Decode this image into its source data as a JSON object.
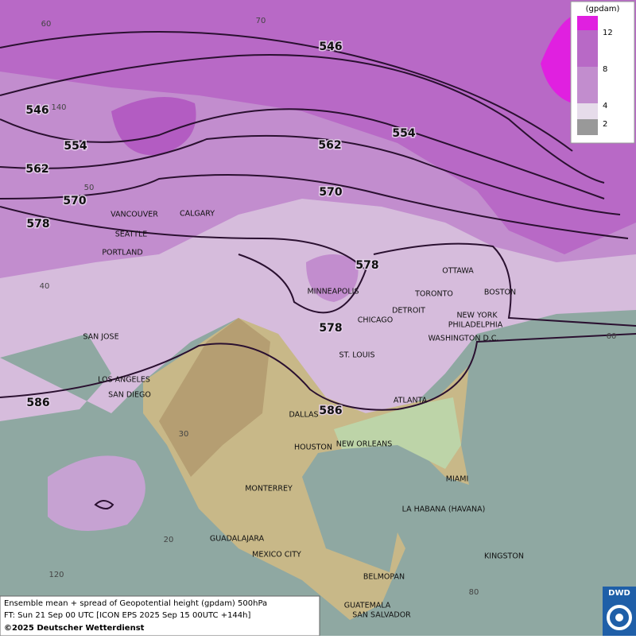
{
  "map": {
    "contour_labels": [
      "546",
      "546",
      "554",
      "554",
      "562",
      "562",
      "570",
      "570",
      "578",
      "578",
      "578",
      "586",
      "586"
    ],
    "graticule_labels": [
      "60",
      "70",
      "140",
      "50",
      "40",
      "60",
      "30",
      "20",
      "120",
      "80"
    ],
    "cities": [
      "VANCOUVER",
      "CALGARY",
      "SEATTLE",
      "PORTLAND",
      "MINNEAPOLIS",
      "OTTAWA",
      "TORONTO",
      "BOSTON",
      "DETROIT",
      "NEW YORK",
      "PHILADELPHIA",
      "CHICAGO",
      "WASHINGTON D.C.",
      "SAN JOSE",
      "ST. LOUIS",
      "LOS ANGELES",
      "SAN DIEGO",
      "ATLANTA",
      "DALLAS",
      "HOUSTON",
      "NEW ORLEANS",
      "MIAMI",
      "MONTERREY",
      "LA HABANA (HAVANA)",
      "GUADALAJARA",
      "MEXICO CITY",
      "KINGSTON",
      "BELMOPAN",
      "GUATEMALA",
      "SAN SALVADOR"
    ]
  },
  "legend": {
    "unit": "(gpdam)",
    "ticks": [
      "12",
      "8",
      "4",
      "2"
    ]
  },
  "footer": {
    "lines": [
      "Ensemble mean + spread of Geopotential height (gpdam) 500hPa",
      "FT: Sun 21 Sep 00 UTC [ICON EPS 2025 Sep 15 00UTC +144h]",
      "©2025 Deutscher Wetterdienst"
    ]
  },
  "logo": "DWD"
}
